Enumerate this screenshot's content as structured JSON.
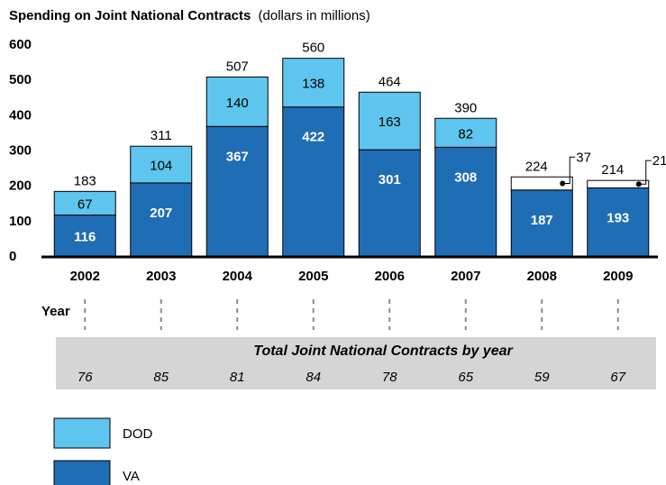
{
  "title": "Spending on Joint National Contracts",
  "subtitle": "(dollars in millions)",
  "colors": {
    "dod": "#5EC5EE",
    "va": "#1F6DB5",
    "band": "#D5D5D5"
  },
  "chart_data": {
    "type": "bar",
    "stacked": true,
    "categories": [
      "2002",
      "2003",
      "2004",
      "2005",
      "2006",
      "2007",
      "2008",
      "2009"
    ],
    "series": [
      {
        "name": "VA",
        "values": [
          116,
          207,
          367,
          422,
          301,
          308,
          187,
          193
        ]
      },
      {
        "name": "DOD",
        "values": [
          67,
          104,
          140,
          138,
          163,
          82,
          37,
          21
        ]
      }
    ],
    "totals": [
      183,
      311,
      507,
      560,
      464,
      390,
      224,
      214
    ],
    "ylim": [
      0,
      600
    ],
    "yticks": [
      0,
      100,
      200,
      300,
      400,
      500,
      600
    ],
    "xlabel": "Year",
    "legend": [
      {
        "label": "DOD"
      },
      {
        "label": "VA"
      }
    ],
    "contracts_title": "Total Joint National Contracts by year",
    "contracts": [
      76,
      85,
      81,
      84,
      78,
      65,
      59,
      67
    ]
  }
}
